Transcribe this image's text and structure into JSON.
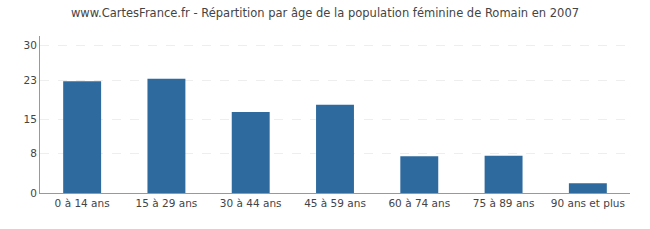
{
  "chart_data": {
    "type": "bar",
    "title": "www.CartesFrance.fr - Répartition par âge de la population féminine de Romain en 2007",
    "categories": [
      "0 à 14 ans",
      "15 à 29 ans",
      "30 à 44 ans",
      "45 à 59 ans",
      "60 à 74 ans",
      "75 à 89 ans",
      "90 ans et plus"
    ],
    "values": [
      22.8,
      23.3,
      16.5,
      18.0,
      7.5,
      7.6,
      2.0
    ],
    "color": "#2e6a9e",
    "ylim": [
      0,
      32
    ],
    "yticks": [
      0,
      8,
      15,
      23,
      30
    ],
    "grid": true
  }
}
